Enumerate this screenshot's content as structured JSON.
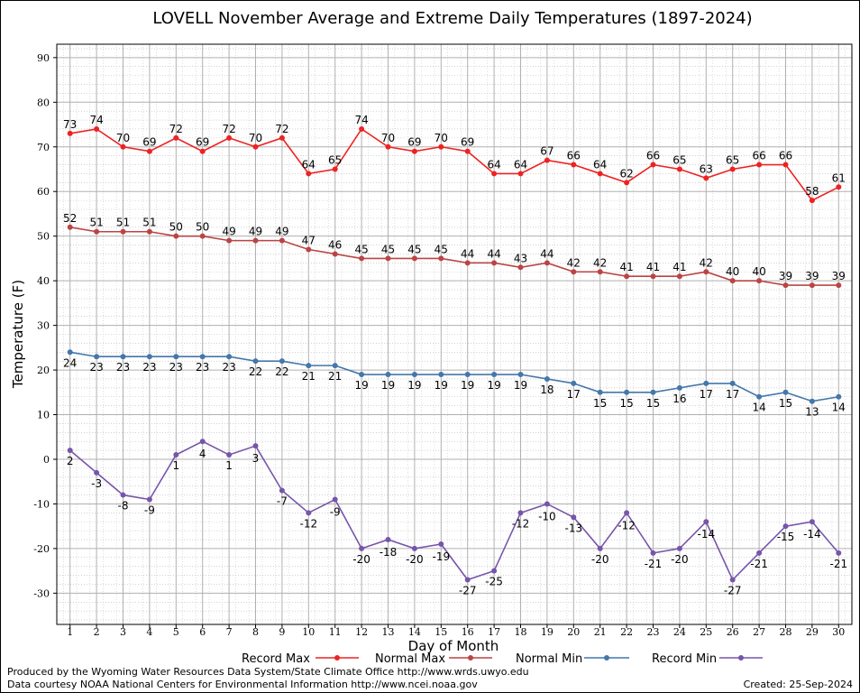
{
  "chart_data": {
    "type": "line",
    "title": "LOVELL November Average and Extreme Daily Temperatures (1897-2024)",
    "xlabel": "Day of Month",
    "ylabel": "Temperature (F)",
    "xlim": [
      0.5,
      30.5
    ],
    "ylim": [
      -37,
      93
    ],
    "yticks": [
      -30,
      -20,
      -10,
      0,
      10,
      20,
      30,
      40,
      50,
      60,
      70,
      80,
      90
    ],
    "x": [
      1,
      2,
      3,
      4,
      5,
      6,
      7,
      8,
      9,
      10,
      11,
      12,
      13,
      14,
      15,
      16,
      17,
      18,
      19,
      20,
      21,
      22,
      23,
      24,
      25,
      26,
      27,
      28,
      29,
      30
    ],
    "grid": true,
    "legend_position": "bottom",
    "series": [
      {
        "name": "Record Max",
        "color": "#ee2222",
        "values": [
          73,
          74,
          70,
          69,
          72,
          69,
          72,
          70,
          72,
          64,
          65,
          74,
          70,
          69,
          70,
          69,
          64,
          64,
          67,
          66,
          64,
          62,
          66,
          65,
          63,
          65,
          66,
          66,
          58,
          61
        ]
      },
      {
        "name": "Normal Max",
        "color": "#bb4444",
        "values": [
          52,
          51,
          51,
          51,
          50,
          50,
          49,
          49,
          49,
          47,
          46,
          45,
          45,
          45,
          45,
          44,
          44,
          43,
          44,
          42,
          42,
          41,
          41,
          41,
          42,
          40,
          40,
          39,
          39,
          39
        ]
      },
      {
        "name": "Normal Min",
        "color": "#4477aa",
        "values": [
          24,
          23,
          23,
          23,
          23,
          23,
          23,
          22,
          22,
          21,
          21,
          19,
          19,
          19,
          19,
          19,
          19,
          19,
          18,
          17,
          15,
          15,
          15,
          16,
          17,
          17,
          14,
          15,
          13,
          14
        ]
      },
      {
        "name": "Record Min",
        "color": "#7755aa",
        "values": [
          2,
          -3,
          -8,
          -9,
          1,
          4,
          1,
          3,
          -7,
          -12,
          -9,
          -20,
          -18,
          -20,
          -19,
          -27,
          -25,
          -12,
          -10,
          -13,
          -20,
          -12,
          -21,
          -20,
          -14,
          -27,
          -21,
          -15,
          -14,
          -21
        ]
      }
    ]
  },
  "footer": {
    "produced_by": "Produced by the Wyoming Water Resources Data System/State Climate Office http://www.wrds.uwyo.edu",
    "courtesy": "Data courtesy NOAA National Centers for Environmental Information http://www.ncei.noaa.gov",
    "created": "Created: 25-Sep-2024"
  }
}
